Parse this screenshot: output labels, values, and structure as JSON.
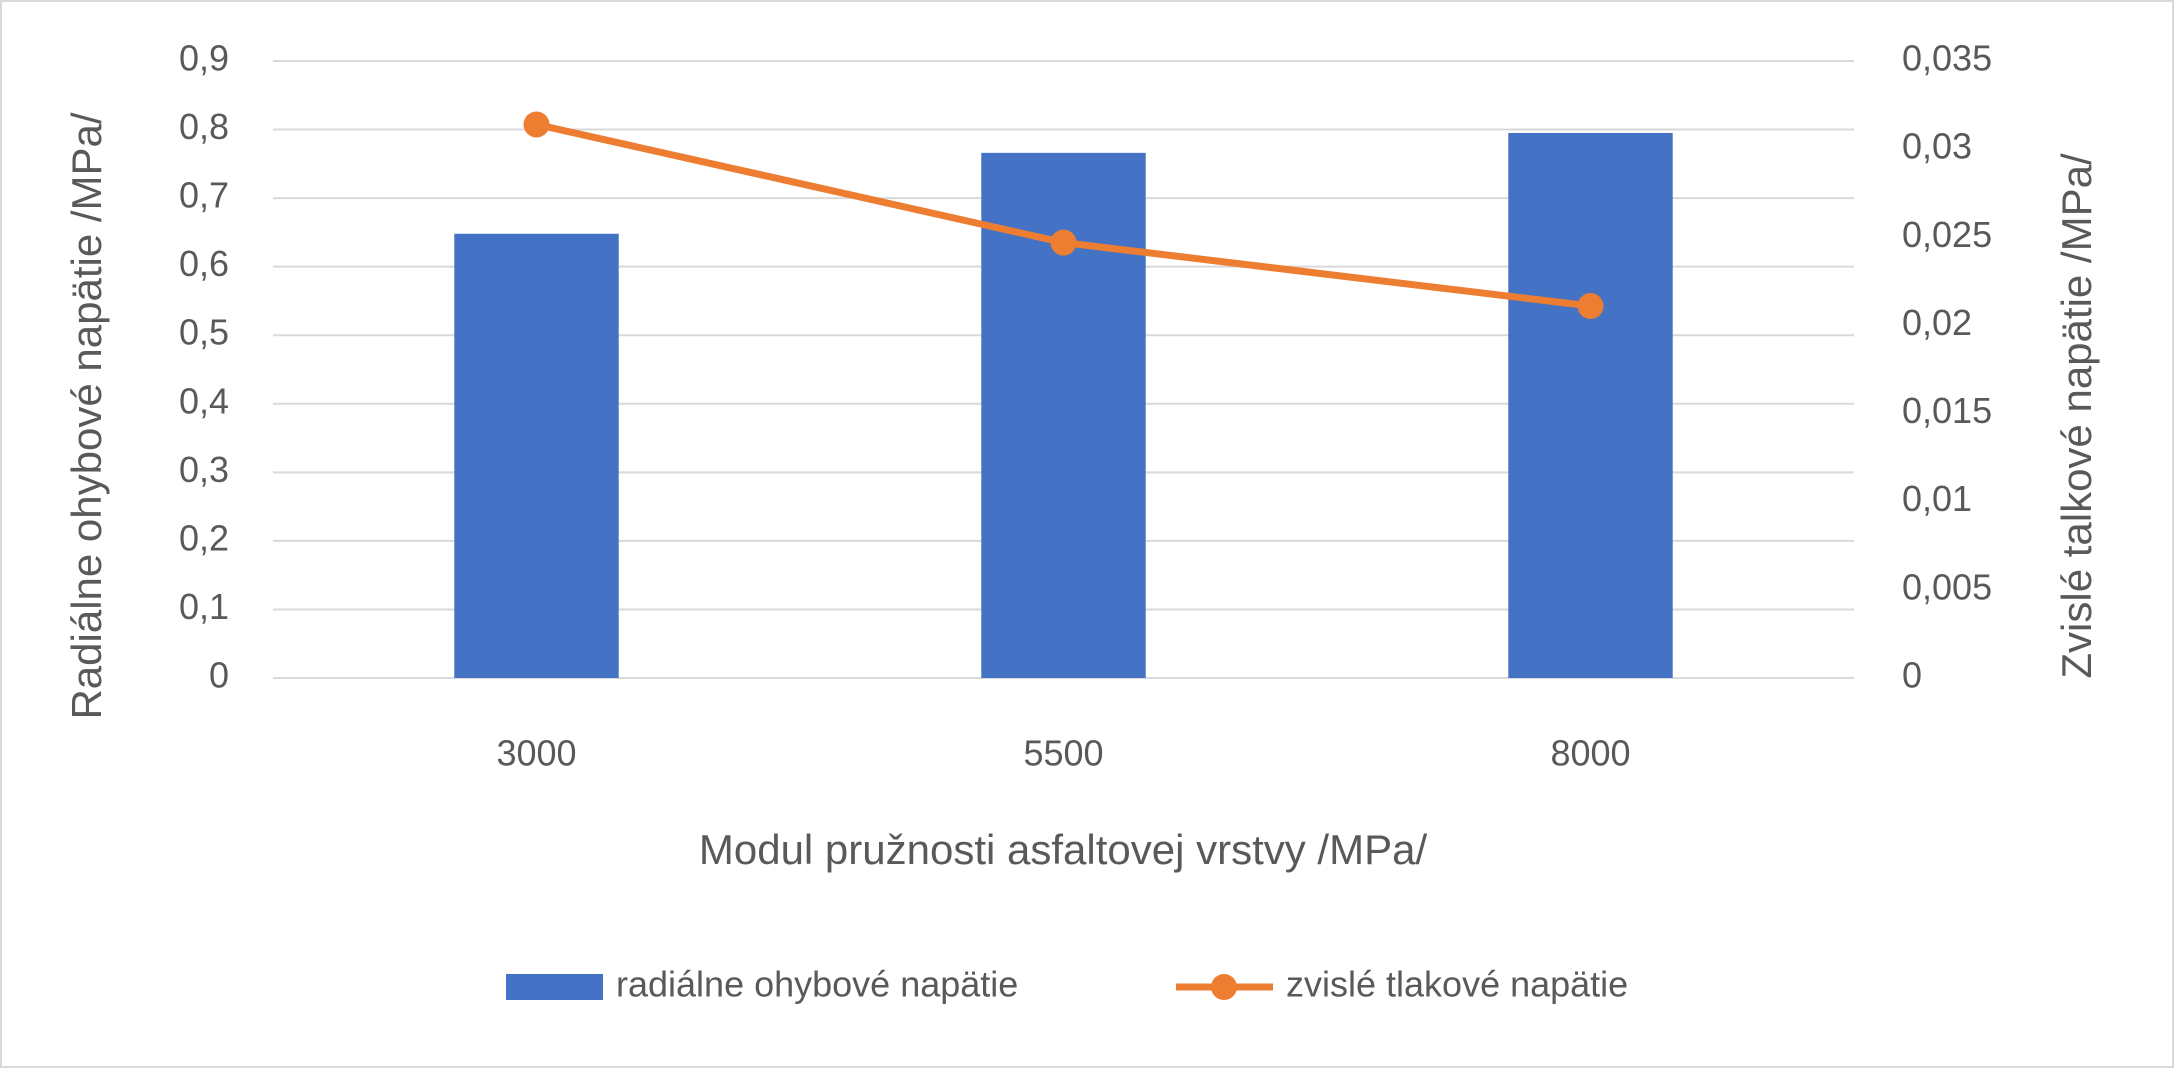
{
  "chart_data": {
    "type": "bar",
    "x_label": "Modul pružnosti asfaltovej vrstvy /MPa/",
    "y_label": "Radiálne ohybové napätie /MPa/",
    "y2_label": "Zvislé talkové napätie /MPa/",
    "categories": [
      "3000",
      "5500",
      "8000"
    ],
    "series": [
      {
        "name": "radiálne ohybové napätie",
        "type": "bar",
        "color": "#4472c4",
        "values": [
          0.648,
          0.766,
          0.795
        ]
      },
      {
        "name": "zvislé tlakové napätie",
        "type": "line",
        "axis": "y2",
        "color": "#ed7d31",
        "values": [
          0.0314,
          0.0247,
          0.0211
        ]
      }
    ],
    "ylim": [
      0,
      0.9
    ],
    "yticks": [
      0,
      {
        "value": 0.1,
        "label": "0,1"
      },
      {
        "value": 0.2,
        "label": "0,2"
      },
      {
        "value": 0.3,
        "label": "0,3"
      },
      {
        "value": 0.4,
        "label": "0,4"
      },
      {
        "value": 0.5,
        "label": "0,5"
      },
      {
        "value": 0.6,
        "label": "0,6"
      },
      {
        "value": 0.7,
        "label": "0,7"
      },
      {
        "value": 0.8,
        "label": "0,8"
      },
      {
        "value": 0.9,
        "label": "0,9"
      }
    ],
    "y2lim": [
      0,
      0.035
    ],
    "y2ticks": [
      0,
      {
        "value": 0.005,
        "label": "0,005"
      },
      {
        "value": 0.01,
        "label": "0,01"
      },
      {
        "value": 0.015,
        "label": "0,015"
      },
      {
        "value": 0.02,
        "label": "0,02"
      },
      {
        "value": 0.025,
        "label": "0,025"
      },
      {
        "value": 0.03,
        "label": "0,03"
      },
      {
        "value": 0.035,
        "label": "0,035"
      }
    ],
    "grid": true,
    "legend": "bottom"
  }
}
